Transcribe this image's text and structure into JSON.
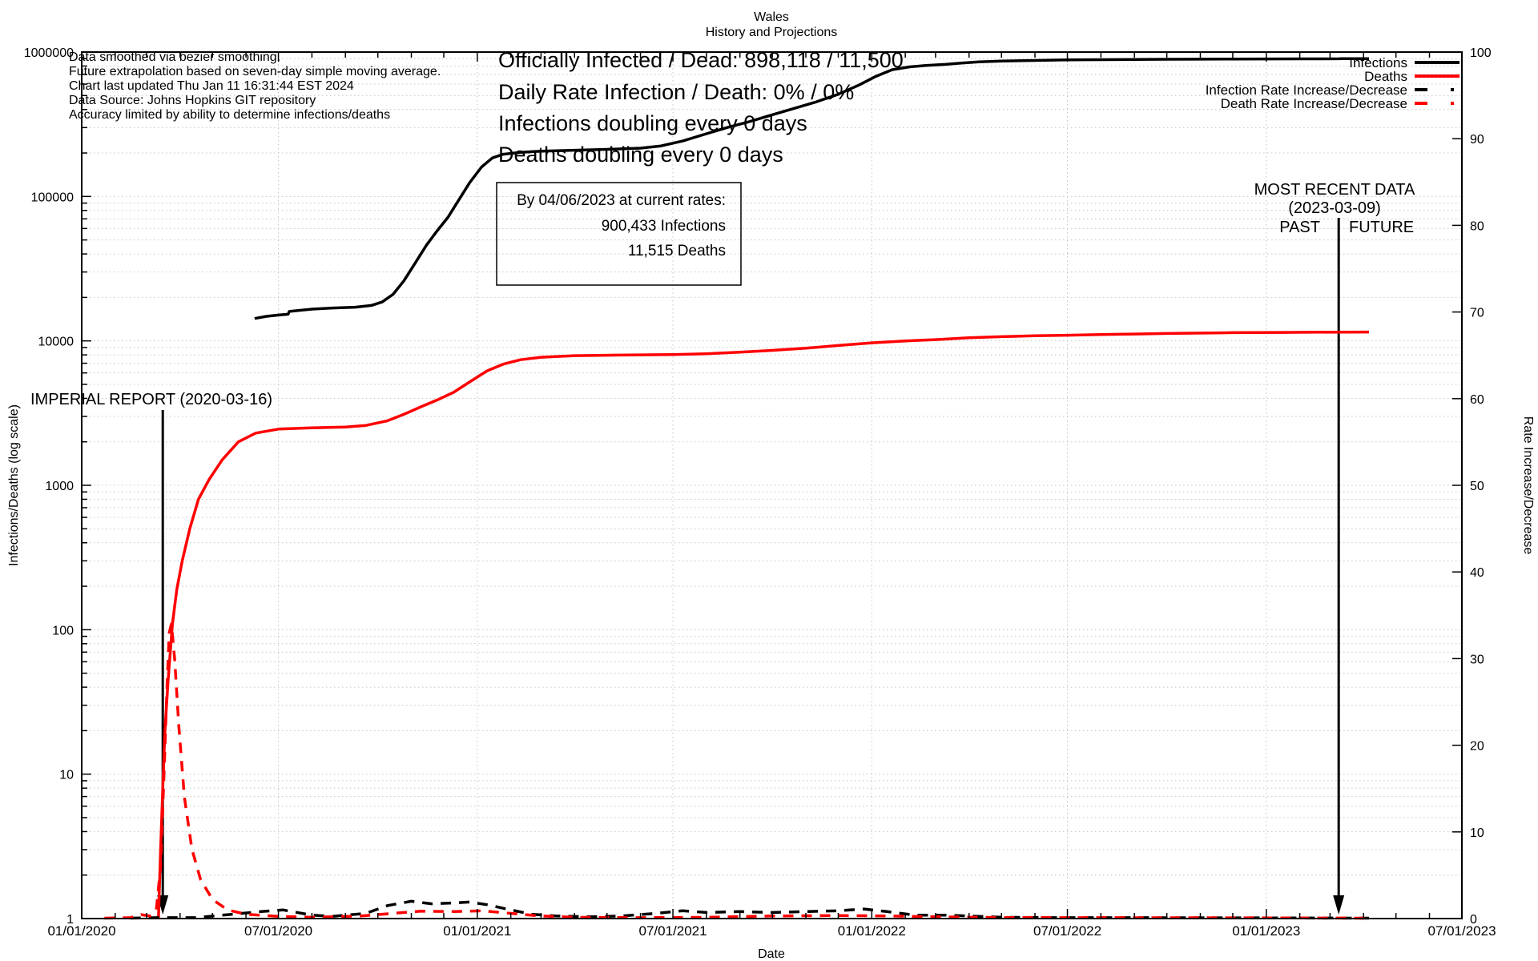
{
  "title": {
    "line1": "Wales",
    "line2": "History and Projections"
  },
  "info_block": [
    "Data smoothed via bezier smoothing.",
    "Future extrapolation based on seven-day simple moving average.",
    "Chart last updated Thu Jan 11 16:31:44 EST 2024",
    "Data Source: Johns Hopkins GIT repository",
    "Accuracy limited by ability to determine infections/deaths"
  ],
  "stats_block": [
    "Officially Infected / Dead:  898,118 / 11,500",
    "Daily Rate Infection / Death:  0% / 0%",
    "Infections doubling every 0 days",
    "Deaths doubling every 0 days"
  ],
  "projection_box": [
    "By 04/06/2023 at current rates:",
    "900,433 Infections",
    "11,515 Deaths"
  ],
  "annotations": {
    "imperial": "IMPERIAL REPORT (2020-03-16)",
    "imperial_date": "2020-03-16",
    "most_recent_1": "MOST RECENT DATA",
    "most_recent_2": "(2023-03-09)",
    "most_recent_date": "2023-03-09",
    "past": "PAST",
    "future": "FUTURE"
  },
  "legend": [
    {
      "label": "Infections",
      "color": "#000000",
      "dash": "solid"
    },
    {
      "label": "Deaths",
      "color": "#ff0000",
      "dash": "solid"
    },
    {
      "label": "Infection Rate Increase/Decrease",
      "color": "#000000",
      "dash": "dashed"
    },
    {
      "label": "Death Rate Increase/Decrease",
      "color": "#ff0000",
      "dash": "dashed"
    }
  ],
  "chart_data": {
    "type": "line",
    "title": "Wales",
    "subtitle": "History and Projections",
    "grid": true,
    "legend_position": "top-right",
    "x_axis": {
      "label": "Date",
      "type": "time",
      "range": [
        "2020-01-01",
        "2023-07-01"
      ],
      "tick_dates": [
        "2020-01-01",
        "2020-07-01",
        "2021-01-01",
        "2021-07-01",
        "2022-01-01",
        "2022-07-01",
        "2023-01-01",
        "2023-07-01"
      ],
      "tick_labels": [
        "01/01/2020",
        "07/01/2020",
        "01/01/2021",
        "07/01/2021",
        "01/01/2022",
        "07/01/2022",
        "01/01/2023",
        "07/01/2023"
      ]
    },
    "y_left": {
      "label": "Infections/Deaths (log scale)",
      "scale": "log",
      "range": [
        1,
        1000000
      ],
      "tick_labels": [
        "1",
        "10",
        "100",
        "1000",
        "10000",
        "100000",
        "1000000"
      ],
      "label_color": "#9400d3"
    },
    "y_right": {
      "label": "Rate Increase/Decrease",
      "scale": "linear",
      "range": [
        0,
        100
      ],
      "tick_step": 10,
      "tick_labels": [
        "0",
        "10",
        "20",
        "30",
        "40",
        "50",
        "60",
        "70",
        "80",
        "90",
        "100"
      ],
      "label_color": "#00a06a"
    },
    "series": [
      {
        "name": "Infections",
        "axis": "left",
        "color": "#000000",
        "style": "solid",
        "points": [
          [
            "2020-06-09",
            14300
          ],
          [
            "2020-06-20",
            14800
          ],
          [
            "2020-07-01",
            15100
          ],
          [
            "2020-07-10",
            15300
          ],
          [
            "2020-07-11",
            16000
          ],
          [
            "2020-08-01",
            16600
          ],
          [
            "2020-08-20",
            16900
          ],
          [
            "2020-09-10",
            17100
          ],
          [
            "2020-09-25",
            17600
          ],
          [
            "2020-10-05",
            18600
          ],
          [
            "2020-10-15",
            21000
          ],
          [
            "2020-10-25",
            26000
          ],
          [
            "2020-11-05",
            35000
          ],
          [
            "2020-11-15",
            46000
          ],
          [
            "2020-11-25",
            58000
          ],
          [
            "2020-12-05",
            72000
          ],
          [
            "2020-12-15",
            95000
          ],
          [
            "2020-12-25",
            125000
          ],
          [
            "2021-01-05",
            160000
          ],
          [
            "2021-01-15",
            185000
          ],
          [
            "2021-01-25",
            196000
          ],
          [
            "2021-02-10",
            202000
          ],
          [
            "2021-03-01",
            206000
          ],
          [
            "2021-04-01",
            209000
          ],
          [
            "2021-05-01",
            212000
          ],
          [
            "2021-06-01",
            216000
          ],
          [
            "2021-06-20",
            224000
          ],
          [
            "2021-07-10",
            242000
          ],
          [
            "2021-08-01",
            272000
          ],
          [
            "2021-08-20",
            300000
          ],
          [
            "2021-09-10",
            330000
          ],
          [
            "2021-10-01",
            368000
          ],
          [
            "2021-10-20",
            405000
          ],
          [
            "2021-11-10",
            450000
          ],
          [
            "2021-12-01",
            510000
          ],
          [
            "2021-12-20",
            590000
          ],
          [
            "2022-01-05",
            680000
          ],
          [
            "2022-01-20",
            755000
          ],
          [
            "2022-02-05",
            790000
          ],
          [
            "2022-02-20",
            808000
          ],
          [
            "2022-03-10",
            822000
          ],
          [
            "2022-03-25",
            840000
          ],
          [
            "2022-04-10",
            856000
          ],
          [
            "2022-05-01",
            866000
          ],
          [
            "2022-06-01",
            875000
          ],
          [
            "2022-07-01",
            882000
          ],
          [
            "2022-08-01",
            886000
          ],
          [
            "2022-09-01",
            889000
          ],
          [
            "2022-10-01",
            891000
          ],
          [
            "2022-11-01",
            893000
          ],
          [
            "2022-12-01",
            895000
          ],
          [
            "2023-01-01",
            896500
          ],
          [
            "2023-02-01",
            897500
          ],
          [
            "2023-03-09",
            898118
          ],
          [
            "2023-03-12",
            900433
          ],
          [
            "2023-04-06",
            900433
          ]
        ]
      },
      {
        "name": "Deaths",
        "axis": "left",
        "color": "#ff0000",
        "style": "solid",
        "points": [
          [
            "2020-03-12",
            1
          ],
          [
            "2020-03-14",
            3
          ],
          [
            "2020-03-16",
            8
          ],
          [
            "2020-03-18",
            20
          ],
          [
            "2020-03-21",
            45
          ],
          [
            "2020-03-25",
            110
          ],
          [
            "2020-03-29",
            190
          ],
          [
            "2020-04-03",
            300
          ],
          [
            "2020-04-10",
            500
          ],
          [
            "2020-04-18",
            800
          ],
          [
            "2020-04-28",
            1100
          ],
          [
            "2020-05-10",
            1500
          ],
          [
            "2020-05-25",
            2000
          ],
          [
            "2020-06-10",
            2300
          ],
          [
            "2020-07-01",
            2450
          ],
          [
            "2020-08-01",
            2500
          ],
          [
            "2020-09-01",
            2530
          ],
          [
            "2020-09-20",
            2600
          ],
          [
            "2020-10-10",
            2800
          ],
          [
            "2020-10-25",
            3100
          ],
          [
            "2020-11-10",
            3500
          ],
          [
            "2020-11-25",
            3900
          ],
          [
            "2020-12-10",
            4400
          ],
          [
            "2020-12-25",
            5200
          ],
          [
            "2021-01-10",
            6200
          ],
          [
            "2021-01-25",
            6900
          ],
          [
            "2021-02-10",
            7400
          ],
          [
            "2021-03-01",
            7700
          ],
          [
            "2021-04-01",
            7900
          ],
          [
            "2021-05-01",
            7950
          ],
          [
            "2021-06-01",
            8000
          ],
          [
            "2021-07-01",
            8050
          ],
          [
            "2021-08-01",
            8150
          ],
          [
            "2021-09-01",
            8350
          ],
          [
            "2021-10-01",
            8600
          ],
          [
            "2021-11-01",
            8900
          ],
          [
            "2021-12-01",
            9300
          ],
          [
            "2022-01-01",
            9700
          ],
          [
            "2022-02-01",
            10000
          ],
          [
            "2022-03-01",
            10200
          ],
          [
            "2022-04-01",
            10500
          ],
          [
            "2022-05-01",
            10700
          ],
          [
            "2022-06-01",
            10850
          ],
          [
            "2022-07-01",
            10950
          ],
          [
            "2022-08-01",
            11050
          ],
          [
            "2022-09-01",
            11150
          ],
          [
            "2022-10-01",
            11250
          ],
          [
            "2022-12-01",
            11400
          ],
          [
            "2023-01-15",
            11450
          ],
          [
            "2023-03-09",
            11500
          ],
          [
            "2023-04-06",
            11515
          ]
        ]
      },
      {
        "name": "Infection Rate Increase/Decrease",
        "axis": "right",
        "color": "#000000",
        "style": "dashed",
        "points": [
          [
            "2020-02-15",
            0.05
          ],
          [
            "2020-03-10",
            0.1
          ],
          [
            "2020-04-15",
            0.1
          ],
          [
            "2020-06-15",
            0.8
          ],
          [
            "2020-07-05",
            1.0
          ],
          [
            "2020-08-01",
            0.4
          ],
          [
            "2020-08-20",
            0.25
          ],
          [
            "2020-09-20",
            0.6
          ],
          [
            "2020-10-10",
            1.5
          ],
          [
            "2020-11-01",
            2.0
          ],
          [
            "2020-11-20",
            1.7
          ],
          [
            "2020-12-10",
            1.8
          ],
          [
            "2020-12-25",
            1.9
          ],
          [
            "2021-01-10",
            1.6
          ],
          [
            "2021-02-01",
            1.0
          ],
          [
            "2021-02-20",
            0.5
          ],
          [
            "2021-03-15",
            0.3
          ],
          [
            "2021-04-15",
            0.2
          ],
          [
            "2021-05-15",
            0.3
          ],
          [
            "2021-06-15",
            0.6
          ],
          [
            "2021-07-10",
            0.9
          ],
          [
            "2021-08-01",
            0.7
          ],
          [
            "2021-09-01",
            0.8
          ],
          [
            "2021-10-01",
            0.7
          ],
          [
            "2021-11-01",
            0.8
          ],
          [
            "2021-12-01",
            0.9
          ],
          [
            "2021-12-25",
            1.1
          ],
          [
            "2022-01-15",
            0.8
          ],
          [
            "2022-02-10",
            0.4
          ],
          [
            "2022-03-10",
            0.4
          ],
          [
            "2022-04-01",
            0.3
          ],
          [
            "2022-05-01",
            0.15
          ],
          [
            "2022-07-01",
            0.1
          ],
          [
            "2022-09-01",
            0.1
          ],
          [
            "2022-12-01",
            0.08
          ],
          [
            "2023-04-06",
            0.05
          ]
        ]
      },
      {
        "name": "Death Rate Increase/Decrease",
        "axis": "right",
        "color": "#ff0000",
        "style": "dashed",
        "points": [
          [
            "2020-01-22",
            0.05
          ],
          [
            "2020-02-15",
            0.1
          ],
          [
            "2020-02-25",
            0.45
          ],
          [
            "2020-03-04",
            0.3
          ],
          [
            "2020-03-10",
            1
          ],
          [
            "2020-03-14",
            6
          ],
          [
            "2020-03-17",
            16
          ],
          [
            "2020-03-20",
            27
          ],
          [
            "2020-03-22",
            33
          ],
          [
            "2020-03-24",
            34
          ],
          [
            "2020-03-27",
            30
          ],
          [
            "2020-03-31",
            22
          ],
          [
            "2020-04-05",
            14
          ],
          [
            "2020-04-12",
            8
          ],
          [
            "2020-04-20",
            4.5
          ],
          [
            "2020-05-01",
            2.2
          ],
          [
            "2020-05-15",
            1.0
          ],
          [
            "2020-06-01",
            0.5
          ],
          [
            "2020-07-01",
            0.25
          ],
          [
            "2020-08-01",
            0.15
          ],
          [
            "2020-09-15",
            0.3
          ],
          [
            "2020-10-15",
            0.6
          ],
          [
            "2020-11-10",
            0.85
          ],
          [
            "2020-12-10",
            0.8
          ],
          [
            "2021-01-05",
            0.9
          ],
          [
            "2021-02-01",
            0.6
          ],
          [
            "2021-03-01",
            0.3
          ],
          [
            "2021-04-01",
            0.15
          ],
          [
            "2021-06-01",
            0.1
          ],
          [
            "2021-08-01",
            0.15
          ],
          [
            "2021-10-01",
            0.3
          ],
          [
            "2021-12-01",
            0.35
          ],
          [
            "2022-01-15",
            0.3
          ],
          [
            "2022-03-01",
            0.2
          ],
          [
            "2022-05-01",
            0.12
          ],
          [
            "2022-08-01",
            0.1
          ],
          [
            "2022-12-01",
            0.08
          ],
          [
            "2023-04-06",
            0.05
          ]
        ]
      }
    ]
  }
}
